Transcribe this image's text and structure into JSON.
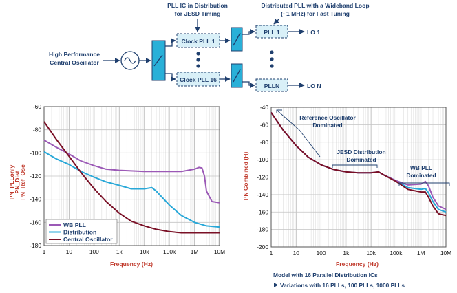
{
  "block_diagram": {
    "osc_label": [
      "High Performance",
      "Central Oscillator"
    ],
    "pll_ic_label": [
      "PLL IC in Distribution",
      "for JESD Timing"
    ],
    "wb_label": [
      "Distributed PLL with a Wideband Loop",
      "(~1 MHz) for Fast Tuning"
    ],
    "clock_top": "Clock PLL 1",
    "clock_bottom": "Clock PLL 16",
    "pll_top": "PLL 1",
    "pll_bottom": "PLLN",
    "lo_top": "LO 1",
    "lo_bottom": "LO N",
    "colors": {
      "block": "#29b0d8",
      "dashed": "#d9f0f8",
      "text": "#1f3f6e"
    }
  },
  "chart_data": [
    {
      "type": "line",
      "x_scale": "log",
      "x_ticks": [
        "1",
        "10",
        "100",
        "1k",
        "10k",
        "100k",
        "1M",
        "10M"
      ],
      "y_ticks": [
        "-60",
        "-80",
        "-100",
        "-120",
        "-140",
        "-160",
        "-180"
      ],
      "ylim": [
        -180,
        -60
      ],
      "xlabel": "Frequency (Hz)",
      "ylabel_parts": [
        {
          "text": "PN_PLLonly",
          "color": "#9b59b6"
        },
        {
          "text": "PN_Dist",
          "color": "#29a8d8"
        },
        {
          "text": "PN_Ref_Osc",
          "color": "#7a1026"
        }
      ],
      "legend": [
        "WB PLL",
        "Distribution",
        "Central Oscillator"
      ],
      "series": [
        {
          "name": "WB PLL",
          "color": "#9b59b6",
          "x": [
            1,
            3,
            10,
            30,
            100,
            300,
            1000,
            3000,
            10000,
            30000,
            100000,
            300000,
            1000000,
            1500000,
            2000000,
            2500000,
            3000000,
            5000000,
            10000000
          ],
          "y": [
            -89,
            -95,
            -101,
            -107,
            -111,
            -114,
            -115,
            -115.5,
            -116,
            -116,
            -116,
            -116,
            -114,
            -112.5,
            -113,
            -120,
            -133,
            -142,
            -143
          ]
        },
        {
          "name": "Distribution",
          "color": "#29a8d8",
          "x": [
            1,
            3,
            10,
            30,
            100,
            300,
            1000,
            3000,
            10000,
            20000,
            30000,
            100000,
            300000,
            1000000,
            3000000,
            10000000
          ],
          "y": [
            -99,
            -105,
            -110,
            -116,
            -121,
            -125,
            -128,
            -131,
            -131,
            -130,
            -133,
            -145,
            -154,
            -160,
            -163,
            -164
          ]
        },
        {
          "name": "Central Oscillator",
          "color": "#7a1026",
          "x": [
            1,
            3,
            10,
            30,
            100,
            300,
            1000,
            3000,
            10000,
            30000,
            100000,
            300000,
            1000000,
            10000000
          ],
          "y": [
            -73,
            -88,
            -103,
            -117,
            -131,
            -142,
            -152,
            -159,
            -163,
            -166,
            -168,
            -169,
            -169,
            -169
          ]
        }
      ]
    },
    {
      "type": "line",
      "x_scale": "log",
      "x_ticks": [
        "1",
        "10",
        "100",
        "1k",
        "10k",
        "100k",
        "1M",
        "10M"
      ],
      "y_ticks": [
        "-40",
        "-60",
        "-80",
        "-100",
        "-120",
        "-140",
        "-160",
        "-180",
        "-200"
      ],
      "ylim": [
        -200,
        -40
      ],
      "xlabel": "Frequency (Hz)",
      "ylabel": "PN Combined (H)",
      "annotations": [
        [
          "Reference Oscillator",
          "Dominated"
        ],
        [
          "JESD Distribution",
          "Dominated"
        ],
        [
          "WB PLL",
          "Dominated"
        ]
      ],
      "notes": [
        "Model with 16 Parallel Distribution ICs",
        "Variations with 16 PLLs, 100 PLLs, 1000 PLLs"
      ],
      "series": [
        {
          "color": "#29a8d8",
          "x": [
            1,
            3,
            10,
            30,
            100,
            300,
            1000,
            3000,
            10000,
            20000,
            30000,
            100000,
            300000,
            1000000,
            1500000,
            2000000,
            3000000,
            5000000,
            10000000
          ],
          "y": [
            -46,
            -66,
            -84,
            -97,
            -106,
            -111,
            -114,
            -115,
            -115,
            -114,
            -117,
            -124,
            -132,
            -134,
            -133,
            -138,
            -148,
            -157,
            -160
          ]
        },
        {
          "color": "#9b59b6",
          "x": [
            1,
            3,
            10,
            30,
            100,
            300,
            1000,
            3000,
            10000,
            20000,
            30000,
            100000,
            300000,
            1000000,
            1500000,
            2000000,
            3000000,
            5000000,
            10000000
          ],
          "y": [
            -46,
            -66,
            -84,
            -97,
            -106,
            -111,
            -114,
            -115,
            -115,
            -114,
            -117,
            -124,
            -129,
            -128,
            -125,
            -130,
            -143,
            -153,
            -157
          ]
        },
        {
          "color": "#7a1026",
          "x": [
            1,
            3,
            10,
            30,
            100,
            300,
            1000,
            3000,
            10000,
            20000,
            30000,
            100000,
            300000,
            1000000,
            1500000,
            2000000,
            3000000,
            5000000,
            10000000
          ],
          "y": [
            -46,
            -66,
            -84,
            -97,
            -106,
            -111,
            -114,
            -115,
            -115,
            -114,
            -117,
            -125,
            -134,
            -137,
            -137,
            -143,
            -153,
            -162,
            -164
          ]
        }
      ]
    }
  ]
}
